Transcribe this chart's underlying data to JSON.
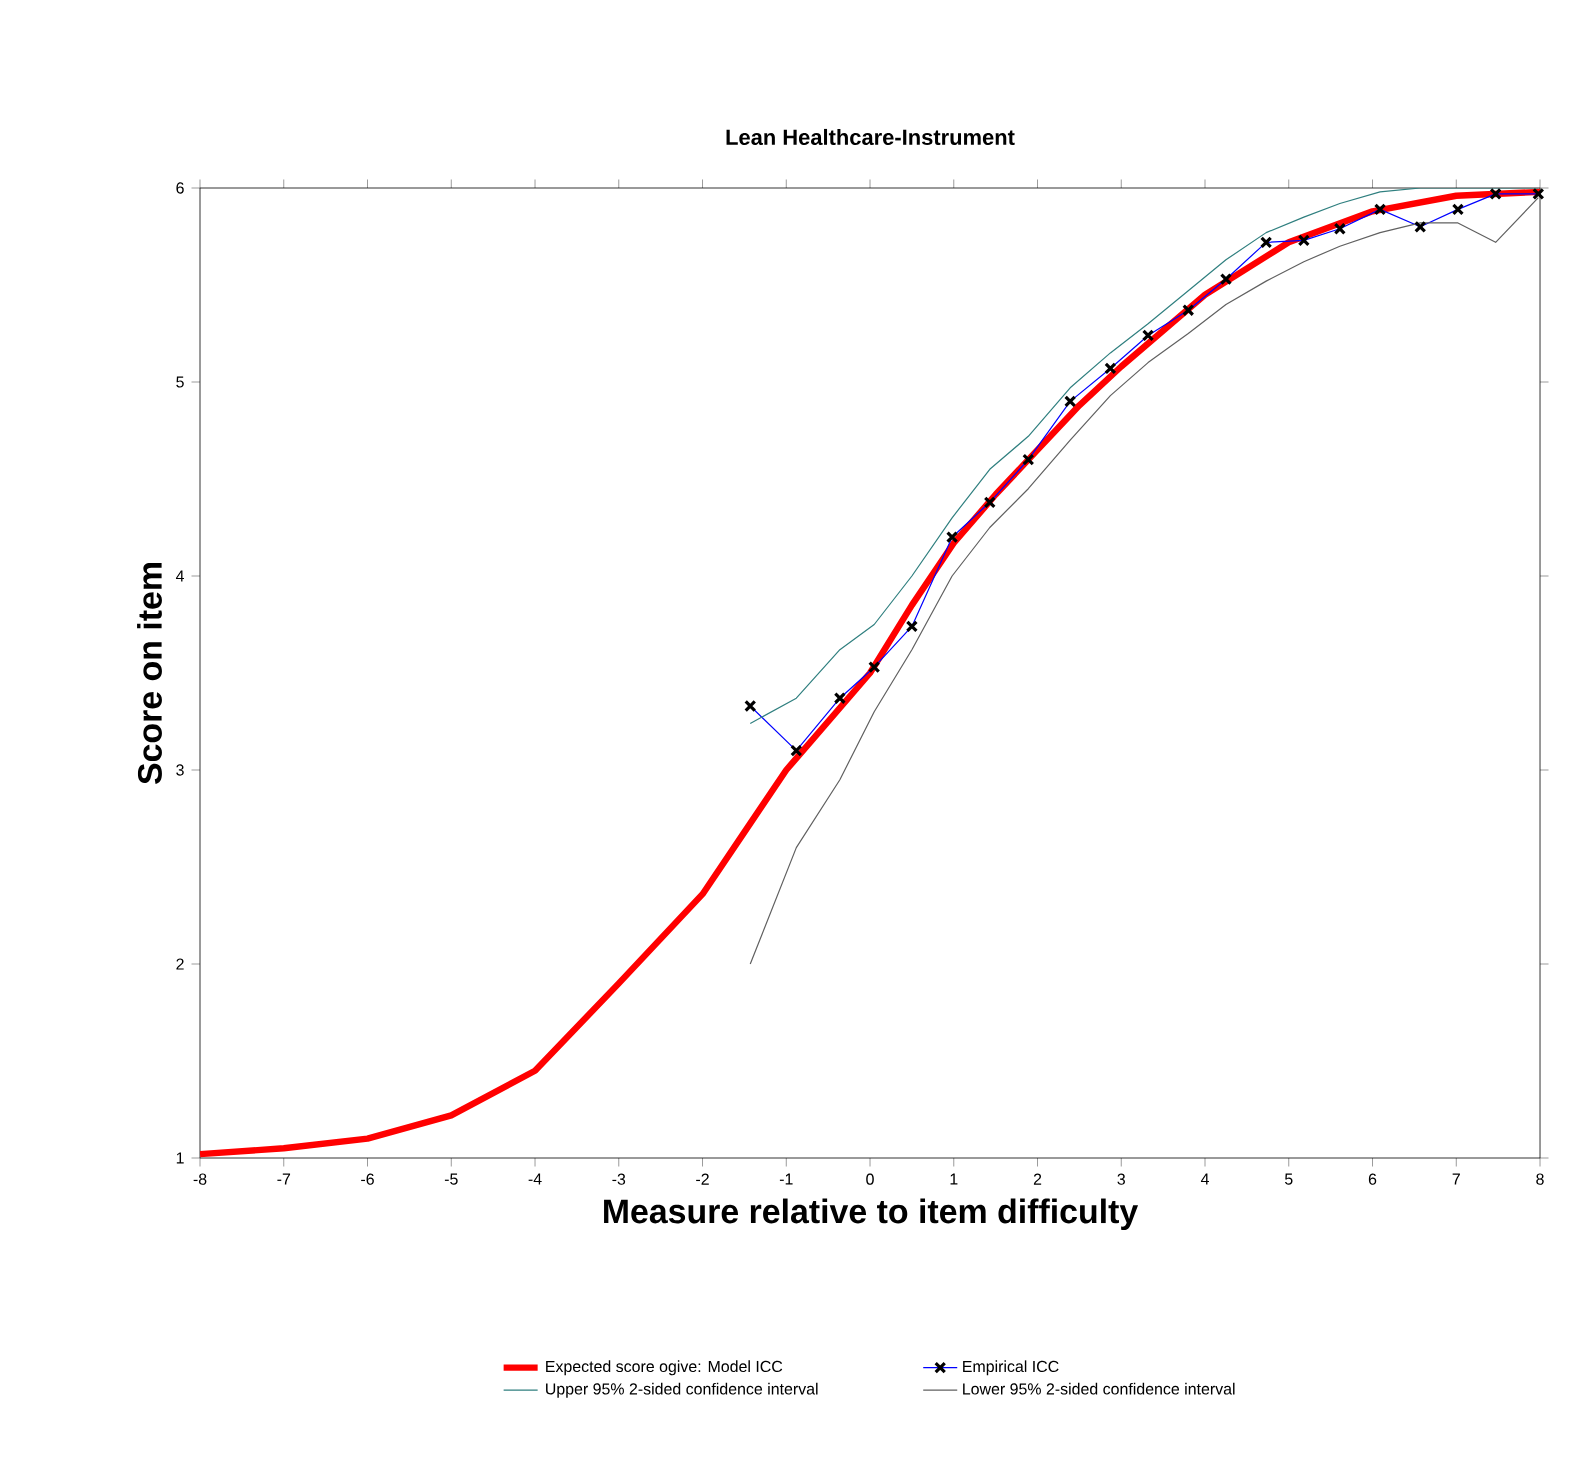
{
  "chart_data": {
    "type": "line",
    "title": "Lean Healthcare-Instrument",
    "xlabel": "Measure relative to item difficulty",
    "ylabel": "Score on item",
    "xlim": [
      -8,
      8
    ],
    "ylim": [
      1,
      6
    ],
    "xticks": [
      -8,
      -7,
      -6,
      -5,
      -4,
      -3,
      -2,
      -1,
      0,
      1,
      2,
      3,
      4,
      5,
      6,
      7,
      8
    ],
    "yticks": [
      1,
      2,
      3,
      4,
      5,
      6
    ],
    "grid": false,
    "legend": "bottom",
    "series": [
      {
        "name": "Expected score ogive: Model ICC",
        "color": "#ff0000",
        "marker": "none",
        "x": [
          -8,
          -7,
          -6,
          -5,
          -4,
          -3,
          -2,
          -1.5,
          -1,
          -0.5,
          0,
          0.5,
          1,
          1.5,
          2,
          2.5,
          3,
          4,
          5,
          6,
          7,
          8
        ],
        "values": [
          1.02,
          1.05,
          1.1,
          1.22,
          1.45,
          1.9,
          2.36,
          2.68,
          3.0,
          3.25,
          3.5,
          3.85,
          4.17,
          4.42,
          4.65,
          4.88,
          5.08,
          5.45,
          5.72,
          5.88,
          5.96,
          5.98
        ]
      },
      {
        "name": "Empirical ICC",
        "color": "#0000ff",
        "marker": "cross",
        "x": [
          -1.43,
          -0.88,
          -0.36,
          0.05,
          0.5,
          0.98,
          1.43,
          1.89,
          2.39,
          2.87,
          3.32,
          3.8,
          4.25,
          4.73,
          5.18,
          5.61,
          6.09,
          6.57,
          7.02,
          7.47,
          7.98
        ],
        "values": [
          3.33,
          3.1,
          3.37,
          3.53,
          3.74,
          4.2,
          4.38,
          4.6,
          4.9,
          5.07,
          5.24,
          5.37,
          5.53,
          5.72,
          5.73,
          5.79,
          5.89,
          5.8,
          5.89,
          5.97,
          5.97
        ]
      },
      {
        "name": "Upper 95% 2-sided confidence interval",
        "color": "#2f7f7f",
        "marker": "none",
        "x": [
          -1.43,
          -0.88,
          -0.36,
          0.05,
          0.5,
          0.98,
          1.43,
          1.89,
          2.39,
          2.87,
          3.32,
          3.8,
          4.25,
          4.73,
          5.18,
          5.61,
          6.09,
          6.57,
          7.02,
          7.47,
          7.98
        ],
        "values": [
          3.24,
          3.37,
          3.62,
          3.75,
          4.0,
          4.3,
          4.55,
          4.72,
          4.97,
          5.15,
          5.3,
          5.47,
          5.63,
          5.77,
          5.85,
          5.92,
          5.98,
          6.0,
          6.0,
          6.0,
          6.0
        ]
      },
      {
        "name": "Lower 95% 2-sided confidence interval",
        "color": "#606060",
        "marker": "none",
        "x": [
          -1.43,
          -0.88,
          -0.36,
          0.05,
          0.5,
          0.98,
          1.43,
          1.89,
          2.39,
          2.87,
          3.32,
          3.8,
          4.25,
          4.73,
          5.18,
          5.61,
          6.09,
          6.57,
          7.02,
          7.47,
          7.98
        ],
        "values": [
          2.0,
          2.6,
          2.95,
          3.3,
          3.62,
          4.0,
          4.25,
          4.45,
          4.7,
          4.93,
          5.1,
          5.25,
          5.4,
          5.52,
          5.62,
          5.7,
          5.77,
          5.82,
          5.82,
          5.72,
          5.95
        ]
      }
    ]
  }
}
